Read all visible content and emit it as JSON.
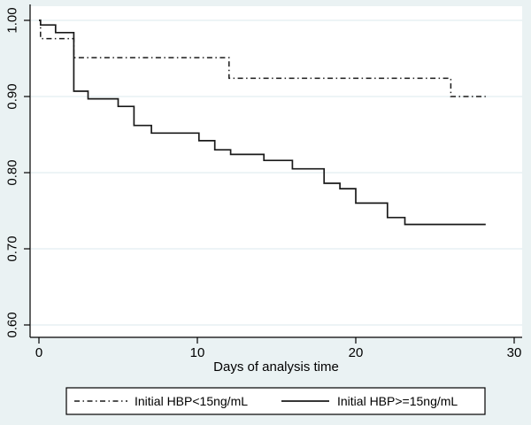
{
  "chart_data": {
    "type": "line",
    "subtype": "kaplan-meier-step",
    "title": "",
    "xlabel": "Days of analysis time",
    "ylabel": "",
    "xlim": [
      0,
      30
    ],
    "ylim": [
      0.6,
      1.0
    ],
    "grid": "horizontal",
    "legend_position": "bottom-center-boxed",
    "x_ticks": [
      {
        "v": 0,
        "label": "0"
      },
      {
        "v": 10,
        "label": "10"
      },
      {
        "v": 20,
        "label": "20"
      },
      {
        "v": 30,
        "label": "30"
      }
    ],
    "y_ticks": [
      {
        "v": 1.0,
        "label": "1.00"
      },
      {
        "v": 0.9,
        "label": "0.90"
      },
      {
        "v": 0.8,
        "label": "0.80"
      },
      {
        "v": 0.7,
        "label": "0.70"
      },
      {
        "v": 0.6,
        "label": "0.60"
      }
    ],
    "series": [
      {
        "name": "Initial HBP<15ng/mL",
        "style": "dash-dot",
        "color": "#1a1a1a",
        "points": [
          [
            0,
            1.0
          ],
          [
            0.1,
            0.976
          ],
          [
            2.2,
            0.951
          ],
          [
            12,
            0.924
          ],
          [
            26,
            0.9
          ],
          [
            28.2,
            0.9
          ]
        ]
      },
      {
        "name": "Initial HBP>=15ng/mL",
        "style": "solid",
        "color": "#1a1a1a",
        "points": [
          [
            0,
            1.0
          ],
          [
            0.1,
            0.994
          ],
          [
            1.05,
            0.984
          ],
          [
            2.2,
            0.907
          ],
          [
            3.1,
            0.897
          ],
          [
            5,
            0.887
          ],
          [
            6,
            0.862
          ],
          [
            7.1,
            0.852
          ],
          [
            10.1,
            0.842
          ],
          [
            11.1,
            0.83
          ],
          [
            12.1,
            0.824
          ],
          [
            14.2,
            0.816
          ],
          [
            16,
            0.805
          ],
          [
            18,
            0.786
          ],
          [
            19,
            0.779
          ],
          [
            20,
            0.76
          ],
          [
            22,
            0.741
          ],
          [
            23.1,
            0.732
          ],
          [
            28.2,
            0.732
          ]
        ]
      }
    ]
  },
  "x_axis": {
    "label": "Days of analysis time"
  },
  "legend": {
    "items": [
      {
        "label": "Initial HBP<15ng/mL",
        "style": "dash-dot"
      },
      {
        "label": "Initial HBP>=15ng/mL",
        "style": "solid"
      }
    ]
  },
  "colors": {
    "background": "#eaf2f3",
    "plot_background": "#ffffff",
    "grid": "#e2edf0",
    "axis": "#000000",
    "line": "#1a1a1a",
    "legend_background": "#ffffff",
    "legend_border": "#000000"
  }
}
